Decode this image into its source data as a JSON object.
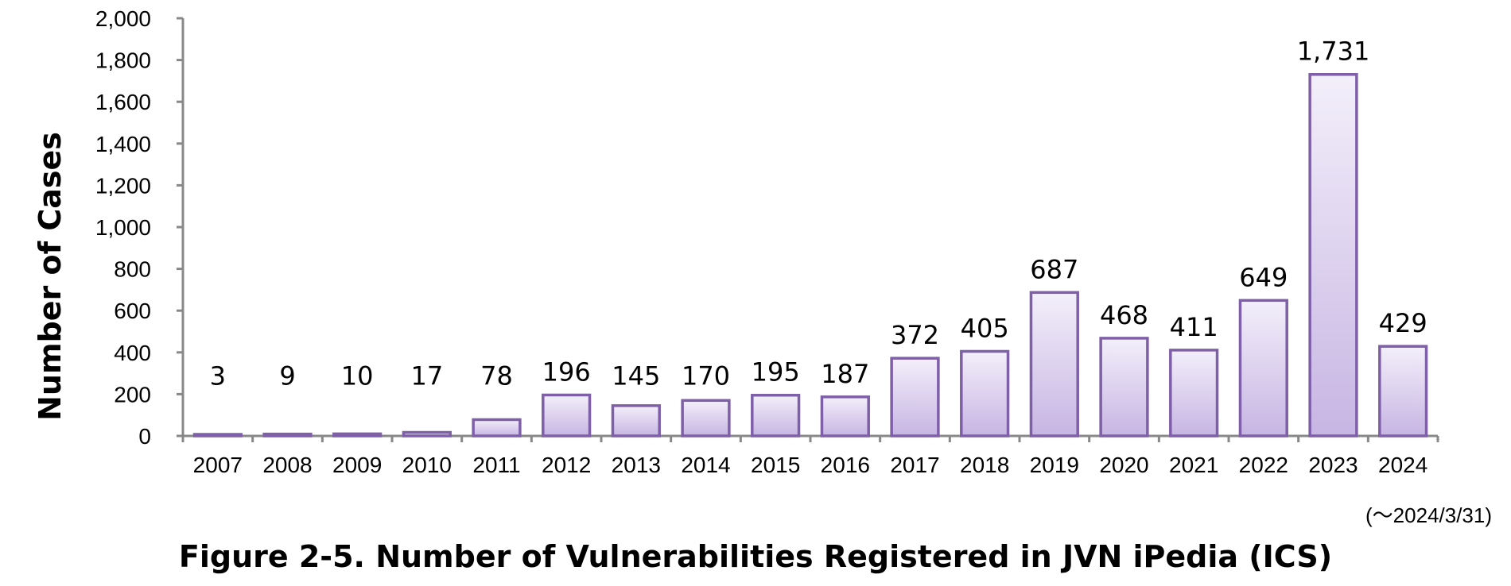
{
  "chart_data": {
    "type": "bar",
    "categories": [
      "2007",
      "2008",
      "2009",
      "2010",
      "2011",
      "2012",
      "2013",
      "2014",
      "2015",
      "2016",
      "2017",
      "2018",
      "2019",
      "2020",
      "2021",
      "2022",
      "2023",
      "2024"
    ],
    "values": [
      3,
      9,
      10,
      17,
      78,
      196,
      145,
      170,
      195,
      187,
      372,
      405,
      687,
      468,
      411,
      649,
      1731,
      429
    ],
    "value_labels": [
      "3",
      "9",
      "10",
      "17",
      "78",
      "196",
      "145",
      "170",
      "195",
      "187",
      "372",
      "405",
      "687",
      "468",
      "411",
      "649",
      "1,731",
      "429"
    ],
    "ylabel": "Number of Cases",
    "ylim": [
      0,
      2000
    ],
    "yticks": [
      0,
      200,
      400,
      600,
      800,
      1000,
      1200,
      1400,
      1600,
      1800,
      2000
    ],
    "ytick_labels": [
      "0",
      "200",
      "400",
      "600",
      "800",
      "1,000",
      "1,200",
      "1,400",
      "1,600",
      "1,800",
      "2,000"
    ],
    "note": "(～2024/3/31)",
    "figure_title": "Figure 2-5. Number of Vulnerabilities Registered in JVN iPedia (ICS)",
    "grid": false,
    "colors": {
      "bar_stroke": "#7E5FA8",
      "bar_fill_top": "#F3EFFA",
      "bar_fill_bottom": "#C7B5E3",
      "axis": "#888888"
    }
  }
}
